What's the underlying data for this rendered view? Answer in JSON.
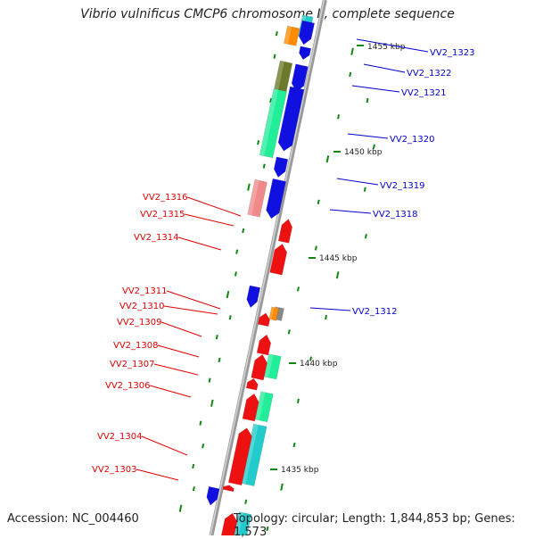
{
  "title": "Vibrio vulnificus CMCP6 chromosome II, complete sequence",
  "accession": "Accession: NC_004460",
  "topology": "Topology: circular; Length: 1,844,853 bp; Genes: 1,573",
  "scale_labels": [
    "1455 kbp",
    "1450 kbp",
    "1445 kbp",
    "1440 kbp",
    "1435 kbp"
  ],
  "colors": {
    "forward_label": "#0000cc",
    "reverse_label": "#e00000",
    "blue": "#1010e0",
    "red": "#ee1111",
    "green": "#22ee99",
    "teal": "#22cccc",
    "orange": "#ff8c00",
    "olive": "#6b7a2a",
    "pink": "#f08a8a",
    "gray": "#888888",
    "tick": "#118811"
  },
  "right_labels": [
    "VV2_1323",
    "VV2_1322",
    "VV2_1321",
    "VV2_1320",
    "VV2_1319",
    "VV2_1318",
    "VV2_1312"
  ],
  "left_labels": [
    "VV2_1316",
    "VV2_1315",
    "VV2_1314",
    "VV2_1311",
    "VV2_1310",
    "VV2_1309",
    "VV2_1308",
    "VV2_1307",
    "VV2_1306",
    "VV2_1304",
    "VV2_1303"
  ]
}
